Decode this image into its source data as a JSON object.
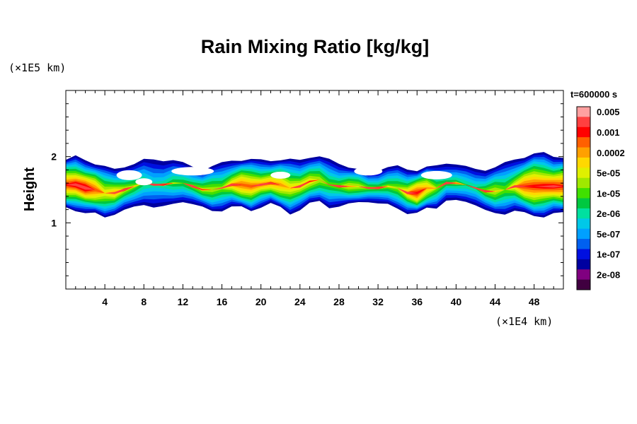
{
  "chart_data": {
    "type": "heatmap",
    "title": "Rain Mixing Ratio [kg/kg]",
    "ylabel": "Height",
    "y_unit_label": "(×1E5 km)",
    "x_unit_label": "(×1E4 km)",
    "time_label": "t=600000 s",
    "xlim": [
      0,
      51
    ],
    "ylim": [
      0,
      3
    ],
    "x_ticks": [
      4,
      8,
      12,
      16,
      20,
      24,
      28,
      32,
      36,
      40,
      44,
      48
    ],
    "y_ticks": [
      1,
      2
    ],
    "colorbar": {
      "levels": [
        "0.005",
        "0.001",
        "0.0002",
        "5e-05",
        "1e-05",
        "2e-06",
        "5e-07",
        "1e-07",
        "2e-08"
      ],
      "colors": [
        "#ffa0a0",
        "#ff4040",
        "#ff0000",
        "#ff6000",
        "#ffa000",
        "#ffd800",
        "#e0f000",
        "#a0e800",
        "#40e000",
        "#00c840",
        "#00e0a0",
        "#00c8e8",
        "#00a0ff",
        "#0060f0",
        "#0010e0",
        "#0000a0",
        "#800080",
        "#400040"
      ]
    },
    "cloud_band": {
      "y_bottom": [
        1.2,
        1.15,
        1.1,
        1.1,
        1.05,
        1.1,
        1.15,
        1.2,
        1.25,
        1.2,
        1.2,
        1.25,
        1.3,
        1.25,
        1.2,
        1.15,
        1.15,
        1.2,
        1.2,
        1.15,
        1.2,
        1.25,
        1.2,
        1.1,
        1.15,
        1.25,
        1.3,
        1.2,
        1.2,
        1.25,
        1.3,
        1.3,
        1.25,
        1.25,
        1.2,
        1.1,
        1.1,
        1.2,
        1.2,
        1.3,
        1.3,
        1.3,
        1.25,
        1.15,
        1.1,
        1.1,
        1.15,
        1.1,
        1.05,
        1.05,
        1.1,
        1.1
      ],
      "y_top": [
        1.95,
        2.0,
        1.95,
        1.9,
        1.85,
        1.8,
        1.85,
        1.9,
        1.95,
        1.95,
        1.95,
        1.95,
        1.9,
        1.85,
        1.8,
        1.85,
        1.9,
        1.95,
        1.95,
        1.95,
        1.95,
        1.95,
        1.95,
        1.95,
        1.95,
        2.0,
        2.0,
        1.95,
        1.9,
        1.85,
        1.8,
        1.75,
        1.8,
        1.85,
        1.85,
        1.8,
        1.8,
        1.85,
        1.85,
        1.9,
        1.9,
        1.85,
        1.8,
        1.8,
        1.85,
        1.9,
        1.95,
        2.0,
        2.05,
        2.05,
        2.0,
        2.0
      ],
      "core_intensity": [
        0.95,
        0.98,
        0.95,
        0.85,
        0.7,
        0.8,
        0.6,
        0.5,
        0.45,
        0.4,
        0.4,
        0.45,
        0.5,
        0.55,
        0.55,
        0.6,
        0.6,
        0.7,
        0.85,
        0.9,
        0.8,
        0.75,
        0.8,
        0.75,
        0.7,
        0.65,
        0.6,
        0.55,
        0.55,
        0.6,
        0.65,
        0.6,
        0.5,
        0.5,
        0.6,
        0.75,
        0.9,
        0.8,
        0.6,
        0.5,
        0.45,
        0.4,
        0.45,
        0.55,
        0.6,
        0.55,
        0.7,
        0.85,
        0.95,
        0.95,
        0.9,
        0.9
      ]
    }
  }
}
